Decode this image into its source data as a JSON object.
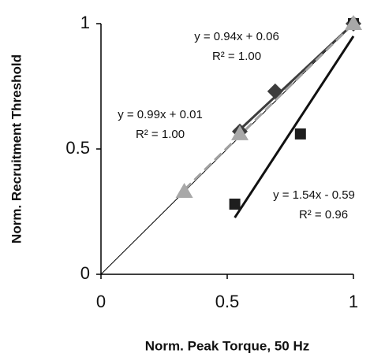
{
  "chart_data": {
    "type": "scatter",
    "xlabel": "Norm. Peak Torque, 50 Hz",
    "ylabel": "Norm. Recruitment Threshold",
    "xlim": [
      0,
      1
    ],
    "ylim": [
      0,
      1
    ],
    "xticks": [
      0,
      0.5,
      1
    ],
    "yticks": [
      0,
      0.5,
      1
    ],
    "identity_line": true,
    "series": [
      {
        "marker": "diamond",
        "color": "#3c3c3c",
        "line_color": "#3c3c3c",
        "dashed": false,
        "x": [
          0.55,
          0.69,
          1
        ],
        "values": [
          0.57,
          0.73,
          1
        ],
        "fit": {
          "slope": 0.94,
          "intercept": 0.06,
          "equation": "y = 0.94x + 0.06",
          "r2": "R² = 1.00"
        }
      },
      {
        "marker": "square",
        "color": "#1e1e1e",
        "line_color": "#111111",
        "dashed": false,
        "x": [
          0.53,
          0.79,
          1
        ],
        "values": [
          0.28,
          0.56,
          1
        ],
        "fit": {
          "slope": 1.54,
          "intercept": -0.59,
          "equation": "y = 1.54x - 0.59",
          "r2": "R² = 0.96"
        }
      },
      {
        "marker": "triangle",
        "color": "#a8a8a8",
        "line_color": "#a0a0a0",
        "dashed": true,
        "x": [
          0.33,
          0.55,
          1
        ],
        "values": [
          0.33,
          0.56,
          1
        ],
        "fit": {
          "slope": 0.99,
          "intercept": 0.01,
          "equation": "y = 0.99x + 0.01",
          "r2": "R² = 1.00"
        }
      }
    ]
  }
}
